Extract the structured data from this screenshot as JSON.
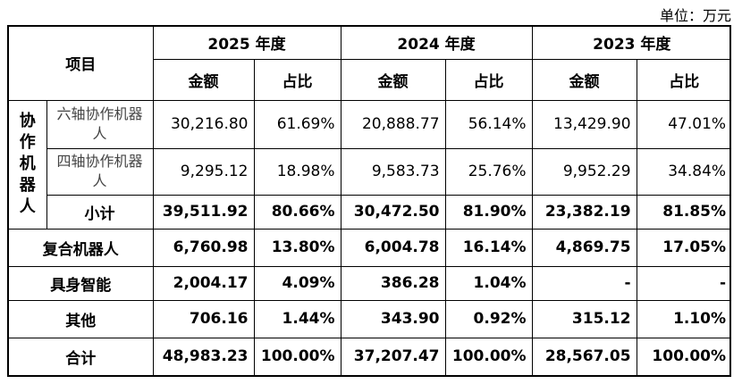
{
  "unit_label": "单位：万元",
  "headers": {
    "item": "项目",
    "years": [
      "2025 年度",
      "2024 年度",
      "2023 年度"
    ],
    "amount": "金额",
    "ratio": "占比"
  },
  "group": {
    "label_chars": [
      "协",
      "作",
      "机",
      "器",
      "人"
    ],
    "rows": [
      {
        "name": "六轴协作机器人",
        "v": [
          "30,216.80",
          "61.69%",
          "20,888.77",
          "56.14%",
          "13,429.90",
          "47.01%"
        ]
      },
      {
        "name": "四轴协作机器人",
        "v": [
          "9,295.12",
          "18.98%",
          "9,583.73",
          "25.76%",
          "9,952.29",
          "34.84%"
        ]
      }
    ],
    "subtotal": {
      "name": "小计",
      "v": [
        "39,511.92",
        "80.66%",
        "30,472.50",
        "81.90%",
        "23,382.19",
        "81.85%"
      ]
    }
  },
  "rows": [
    {
      "name": "复合机器人",
      "v": [
        "6,760.98",
        "13.80%",
        "6,004.78",
        "16.14%",
        "4,869.75",
        "17.05%"
      ]
    },
    {
      "name": "具身智能",
      "v": [
        "2,004.17",
        "4.09%",
        "386.28",
        "1.04%",
        "-",
        "-"
      ]
    },
    {
      "name": "其他",
      "v": [
        "706.16",
        "1.44%",
        "343.90",
        "0.92%",
        "315.12",
        "1.10%"
      ]
    },
    {
      "name": "合计",
      "v": [
        "48,983.23",
        "100.00%",
        "37,207.47",
        "100.00%",
        "28,567.05",
        "100.00%"
      ]
    }
  ]
}
